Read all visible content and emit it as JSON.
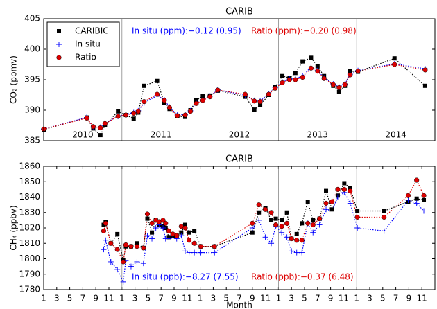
{
  "chart_data": [
    {
      "type": "line",
      "title": "CARIB",
      "ylabel": "CO₂ (ppmv)",
      "x": [
        1,
        7.6,
        8.6,
        9.7,
        10.4,
        12.4,
        13.6,
        14.8,
        15.5,
        16.4,
        18.4,
        19.5,
        20.3,
        21.5,
        22.7,
        23.5,
        24.4,
        25.4,
        26.5,
        27.7,
        31.9,
        33.3,
        34.2,
        35.5,
        36.5,
        37.6,
        38.7,
        39.6,
        40.7,
        42,
        43,
        44,
        45.4,
        46.3,
        47.2,
        48,
        49.2,
        54.8,
        59.5
      ],
      "series": [
        {
          "name": "CARIBIC",
          "color": "#000000",
          "marker": "square",
          "values": [
            386.8,
            388.8,
            387.0,
            385.9,
            387.5,
            389.8,
            389.2,
            388.6,
            389.6,
            394.0,
            394.8,
            391.2,
            390.2,
            389.0,
            388.9,
            390.0,
            391.6,
            392.3,
            392.4,
            393.2,
            392.2,
            390.1,
            390.8,
            392.5,
            393.8,
            395.6,
            395.3,
            396.1,
            398.0,
            398.6,
            397.2,
            395.6,
            394.0,
            393.0,
            394.0,
            396.4,
            396.3,
            398.5,
            394.0
          ]
        },
        {
          "name": "In situ",
          "color": "#0000ff",
          "marker": "plus",
          "values": [
            386.9,
            388.8,
            387.2,
            387.2,
            387.9,
            389.0,
            389.3,
            389.6,
            389.9,
            391.2,
            392.4,
            391.7,
            390.5,
            389.2,
            389.3,
            389.9,
            391.2,
            391.7,
            392.3,
            393.3,
            392.5,
            391.6,
            391.5,
            392.7,
            393.7,
            394.6,
            395.1,
            395.2,
            395.6,
            397.1,
            396.5,
            395.3,
            394.3,
            393.8,
            394.3,
            395.9,
            396.5,
            397.6,
            396.8
          ]
        },
        {
          "name": "Ratio",
          "color": "#dd0000",
          "marker": "circle",
          "values": [
            386.9,
            388.7,
            387.3,
            387.1,
            387.8,
            389.0,
            389.2,
            389.5,
            389.8,
            391.4,
            392.6,
            391.6,
            390.4,
            389.1,
            389.2,
            389.8,
            391.1,
            391.6,
            392.2,
            393.3,
            392.6,
            391.5,
            391.4,
            392.6,
            393.6,
            394.5,
            395.0,
            395.0,
            395.4,
            396.9,
            396.4,
            395.2,
            394.2,
            393.7,
            394.2,
            395.8,
            396.4,
            397.5,
            396.6
          ]
        }
      ],
      "xlim": [
        1,
        61
      ],
      "ylim": [
        385,
        405
      ],
      "yticks": [
        385,
        390,
        395,
        400,
        405
      ],
      "year_dividers": [
        13,
        25,
        37,
        49
      ],
      "year_labels": [
        "2010",
        "2011",
        "2012",
        "2013",
        "2014"
      ],
      "legend": "upper left",
      "annotations": [
        {
          "text": "In situ (ppm):−0.12 (0.95)",
          "color": "#0000ff"
        },
        {
          "text": "Ratio (ppm):−0.20 (0.98)",
          "color": "#dd0000"
        }
      ]
    },
    {
      "type": "line",
      "title": "CARIB",
      "ylabel": "CH₄ (ppbv)",
      "xlabel": "Month",
      "x": [
        10.2,
        10.5,
        11.3,
        12.3,
        13.2,
        13.6,
        14.4,
        15.3,
        16.3,
        16.9,
        17.6,
        18.2,
        18.7,
        19.3,
        19.7,
        20.2,
        20.8,
        21.4,
        22.1,
        22.7,
        23.3,
        24.1,
        25.1,
        27.2,
        33.0,
        34.0,
        35.0,
        35.9,
        36.6,
        37.5,
        38.3,
        39.0,
        39.8,
        40.6,
        41.5,
        42.3,
        43.3,
        44.3,
        45.2,
        46.1,
        47.1,
        48.0,
        49.1,
        53.2,
        56.9,
        58.2,
        59.3
      ],
      "series": [
        {
          "color": "#000000",
          "marker": "square",
          "values": [
            1822,
            1824,
            1810,
            1816,
            1799,
            1808,
            1808,
            1810,
            1807,
            1826,
            1817,
            1825,
            1822,
            1821,
            1820,
            1814,
            1815,
            1815,
            1817,
            1822,
            1817,
            1818,
            1808,
            1808,
            1817,
            1830,
            1833,
            1825,
            1826,
            1825,
            1830,
            1813,
            1816,
            1823,
            1837,
            1825,
            1826,
            1844,
            1832,
            1841,
            1849,
            1846,
            1831,
            1831,
            1837,
            1839,
            1838
          ]
        },
        {
          "color": "#0000ff",
          "marker": "plus",
          "values": [
            1806,
            1812,
            1798,
            1793,
            1785,
            1799,
            1795,
            1798,
            1797,
            1815,
            1813,
            1820,
            1822,
            1820,
            1813,
            1813,
            1815,
            1813,
            1815,
            1805,
            1804,
            1804,
            1804,
            1804,
            1820,
            1825,
            1814,
            1810,
            1821,
            1817,
            1814,
            1805,
            1804,
            1804,
            1823,
            1817,
            1822,
            1832,
            1831,
            1840,
            1843,
            1836,
            1820,
            1818,
            1838,
            1836,
            1831
          ]
        },
        {
          "color": "#dd0000",
          "marker": "circle",
          "values": [
            1818,
            1823,
            1810,
            1806,
            1798,
            1809,
            1808,
            1808,
            1807,
            1829,
            1823,
            1825,
            1824,
            1825,
            1823,
            1818,
            1816,
            1815,
            1821,
            1820,
            1812,
            1810,
            1808,
            1808,
            1823,
            1835,
            1832,
            1830,
            1822,
            1821,
            1823,
            1813,
            1812,
            1812,
            1823,
            1822,
            1826,
            1836,
            1837,
            1845,
            1845,
            1844,
            1827,
            1827,
            1841,
            1851,
            1841
          ]
        }
      ],
      "xlim": [
        1,
        61
      ],
      "ylim": [
        1780,
        1860
      ],
      "xticks": [
        1,
        3,
        5,
        7,
        9,
        11,
        {
          "value": 13,
          "label": "1"
        },
        {
          "value": 15,
          "label": "3"
        },
        {
          "value": 17,
          "label": "5"
        },
        {
          "value": 19,
          "label": "7"
        },
        {
          "value": 21,
          "label": "9"
        },
        {
          "value": 23,
          "label": "11"
        },
        {
          "value": 25,
          "label": "1"
        },
        {
          "value": 27,
          "label": "3"
        },
        {
          "value": 29,
          "label": "5"
        },
        {
          "value": 31,
          "label": "7"
        },
        {
          "value": 33,
          "label": "9"
        },
        {
          "value": 35,
          "label": "11"
        },
        {
          "value": 37,
          "label": "1"
        },
        {
          "value": 39,
          "label": "3"
        },
        {
          "value": 41,
          "label": "5"
        },
        {
          "value": 43,
          "label": "7"
        },
        {
          "value": 45,
          "label": "9"
        },
        {
          "value": 47,
          "label": "11"
        },
        {
          "value": 49,
          "label": "1"
        },
        {
          "value": 51,
          "label": "3"
        },
        {
          "value": 53,
          "label": "5"
        },
        {
          "value": 55,
          "label": "7"
        },
        {
          "value": 57,
          "label": "9"
        },
        {
          "value": 59,
          "label": "11"
        }
      ],
      "yticks": [
        1780,
        1790,
        1800,
        1810,
        1820,
        1830,
        1840,
        1850,
        1860
      ],
      "year_dividers": [
        13,
        25,
        37,
        49
      ],
      "annotations": [
        {
          "text": "In situ (ppb):−8.27 (7.55)",
          "color": "#0000ff"
        },
        {
          "text": "Ratio (ppb):−0.37 (6.48)",
          "color": "#dd0000"
        }
      ]
    }
  ]
}
